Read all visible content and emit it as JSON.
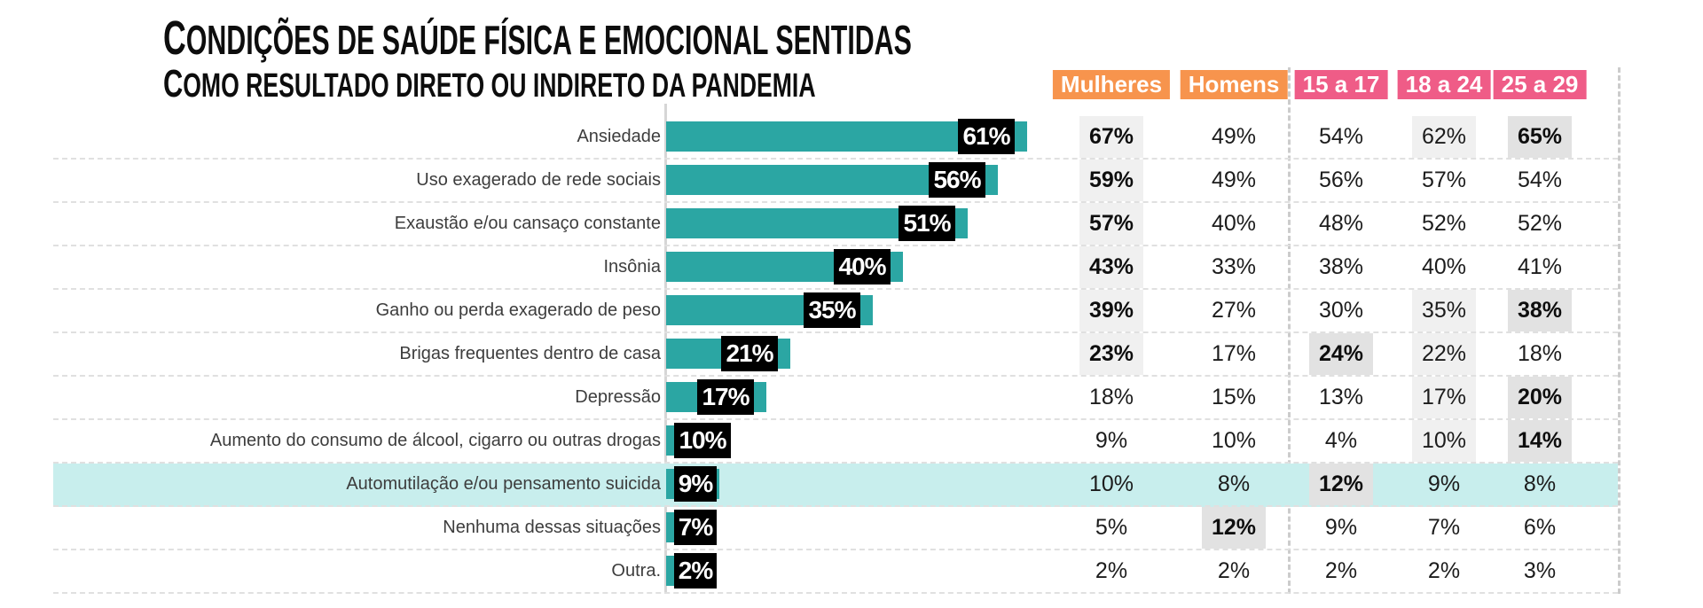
{
  "title": "CONDIÇÕES DE SAÚDE FÍSICA E EMOCIONAL SENTIDAS",
  "subtitle": "COMO RESULTADO DIRETO OU INDIRETO DA PANDEMIA",
  "column_headers": [
    {
      "label": "Mulheres",
      "group": "gender"
    },
    {
      "label": "Homens",
      "group": "gender"
    },
    {
      "label": "15 a 17",
      "group": "age"
    },
    {
      "label": "18 a 24",
      "group": "age"
    },
    {
      "label": "25 a 29",
      "group": "age"
    }
  ],
  "colors": {
    "bar_teal": "#2BA6A3",
    "header_orange": "#F7944D",
    "header_pink": "#EF5C87",
    "row_highlight_cyan": "#C8EEED",
    "bar_label_bg": "#000000",
    "bar_label_text": "#FFFFFF"
  },
  "rows": [
    {
      "label": "Ansiedade",
      "bar": 61,
      "bar_label": "61%",
      "row_highlight": false,
      "cells": [
        {
          "v": "67%",
          "s": "bh"
        },
        {
          "v": "49%",
          "s": ""
        },
        {
          "v": "54%",
          "s": ""
        },
        {
          "v": "62%",
          "s": "h"
        },
        {
          "v": "65%",
          "s": "bH"
        }
      ]
    },
    {
      "label": "Uso exagerado de rede sociais",
      "bar": 56,
      "bar_label": "56%",
      "row_highlight": false,
      "cells": [
        {
          "v": "59%",
          "s": "bh"
        },
        {
          "v": "49%",
          "s": ""
        },
        {
          "v": "56%",
          "s": ""
        },
        {
          "v": "57%",
          "s": ""
        },
        {
          "v": "54%",
          "s": ""
        }
      ]
    },
    {
      "label": "Exaustão e/ou cansaço constante",
      "bar": 51,
      "bar_label": "51%",
      "row_highlight": false,
      "cells": [
        {
          "v": "57%",
          "s": "bh"
        },
        {
          "v": "40%",
          "s": ""
        },
        {
          "v": "48%",
          "s": ""
        },
        {
          "v": "52%",
          "s": ""
        },
        {
          "v": "52%",
          "s": ""
        }
      ]
    },
    {
      "label": "Insônia",
      "bar": 40,
      "bar_label": "40%",
      "row_highlight": false,
      "cells": [
        {
          "v": "43%",
          "s": "bh"
        },
        {
          "v": "33%",
          "s": ""
        },
        {
          "v": "38%",
          "s": ""
        },
        {
          "v": "40%",
          "s": ""
        },
        {
          "v": "41%",
          "s": ""
        }
      ]
    },
    {
      "label": "Ganho ou perda exagerado de peso",
      "bar": 35,
      "bar_label": "35%",
      "row_highlight": false,
      "cells": [
        {
          "v": "39%",
          "s": "bh"
        },
        {
          "v": "27%",
          "s": ""
        },
        {
          "v": "30%",
          "s": ""
        },
        {
          "v": "35%",
          "s": "h"
        },
        {
          "v": "38%",
          "s": "bH"
        }
      ]
    },
    {
      "label": "Brigas frequentes dentro de casa",
      "bar": 21,
      "bar_label": "21%",
      "row_highlight": false,
      "cells": [
        {
          "v": "23%",
          "s": "bh"
        },
        {
          "v": "17%",
          "s": ""
        },
        {
          "v": "24%",
          "s": "bH"
        },
        {
          "v": "22%",
          "s": "h"
        },
        {
          "v": "18%",
          "s": ""
        }
      ]
    },
    {
      "label": "Depressão",
      "bar": 17,
      "bar_label": "17%",
      "row_highlight": false,
      "cells": [
        {
          "v": "18%",
          "s": ""
        },
        {
          "v": "15%",
          "s": ""
        },
        {
          "v": "13%",
          "s": ""
        },
        {
          "v": "17%",
          "s": "h"
        },
        {
          "v": "20%",
          "s": "bH"
        }
      ]
    },
    {
      "label": "Aumento do consumo de álcool, cigarro ou outras drogas",
      "bar": 10,
      "bar_label": "10%",
      "row_highlight": false,
      "cells": [
        {
          "v": "9%",
          "s": ""
        },
        {
          "v": "10%",
          "s": ""
        },
        {
          "v": "4%",
          "s": ""
        },
        {
          "v": "10%",
          "s": "h"
        },
        {
          "v": "14%",
          "s": "bH"
        }
      ]
    },
    {
      "label": "Automutilação e/ou pensamento suicida",
      "bar": 9,
      "bar_label": "9%",
      "row_highlight": true,
      "cells": [
        {
          "v": "10%",
          "s": ""
        },
        {
          "v": "8%",
          "s": ""
        },
        {
          "v": "12%",
          "s": "bH"
        },
        {
          "v": "9%",
          "s": ""
        },
        {
          "v": "8%",
          "s": ""
        }
      ]
    },
    {
      "label": "Nenhuma dessas situações",
      "bar": 7,
      "bar_label": "7%",
      "row_highlight": false,
      "cells": [
        {
          "v": "5%",
          "s": ""
        },
        {
          "v": "12%",
          "s": "bH"
        },
        {
          "v": "9%",
          "s": ""
        },
        {
          "v": "7%",
          "s": ""
        },
        {
          "v": "6%",
          "s": ""
        }
      ]
    },
    {
      "label": "Outra.",
      "bar": 2,
      "bar_label": "2%",
      "row_highlight": false,
      "cells": [
        {
          "v": "2%",
          "s": ""
        },
        {
          "v": "2%",
          "s": ""
        },
        {
          "v": "2%",
          "s": ""
        },
        {
          "v": "2%",
          "s": ""
        },
        {
          "v": "3%",
          "s": ""
        }
      ]
    }
  ],
  "chart_data": {
    "type": "bar",
    "orientation": "horizontal",
    "title": "Condições de saúde física e emocional sentidas",
    "subtitle": "Como resultado direto ou indireto da pandemia",
    "unit": "%",
    "xlim": [
      0,
      65
    ],
    "grid": "dashed row separators, no value axis ticks",
    "legend_position": "none",
    "categories": [
      "Ansiedade",
      "Uso exagerado de rede sociais",
      "Exaustão e/ou cansaço constante",
      "Insônia",
      "Ganho ou perda exagerado de peso",
      "Brigas frequentes dentro de casa",
      "Depressão",
      "Aumento do consumo de álcool, cigarro ou outras drogas",
      "Automutilação e/ou pensamento suicida",
      "Nenhuma dessas situações",
      "Outra."
    ],
    "values_total": [
      61,
      56,
      51,
      40,
      35,
      21,
      17,
      10,
      9,
      7,
      2
    ],
    "series": [
      {
        "name": "Mulheres",
        "values": [
          67,
          59,
          57,
          43,
          39,
          23,
          18,
          9,
          10,
          5,
          2
        ]
      },
      {
        "name": "Homens",
        "values": [
          49,
          49,
          40,
          33,
          27,
          17,
          15,
          10,
          8,
          12,
          2
        ]
      },
      {
        "name": "15 a 17",
        "values": [
          54,
          56,
          48,
          38,
          30,
          24,
          13,
          4,
          12,
          9,
          2
        ]
      },
      {
        "name": "18 a 24",
        "values": [
          62,
          57,
          52,
          40,
          35,
          22,
          17,
          10,
          9,
          7,
          2
        ]
      },
      {
        "name": "25 a 29",
        "values": [
          65,
          54,
          52,
          41,
          38,
          18,
          20,
          14,
          8,
          6,
          3
        ]
      }
    ],
    "highlighted_category": "Automutilação e/ou pensamento suicida"
  }
}
